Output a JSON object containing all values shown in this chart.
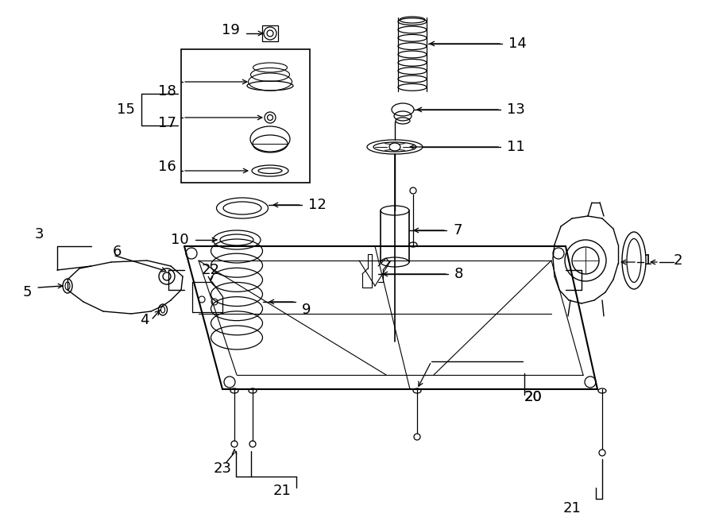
{
  "bg_color": "#ffffff",
  "line_color": "#000000",
  "label_fontsize": 13,
  "figsize": [
    9.0,
    6.61
  ],
  "dpi": 100,
  "xlim": [
    0,
    900
  ],
  "ylim": [
    661,
    0
  ]
}
